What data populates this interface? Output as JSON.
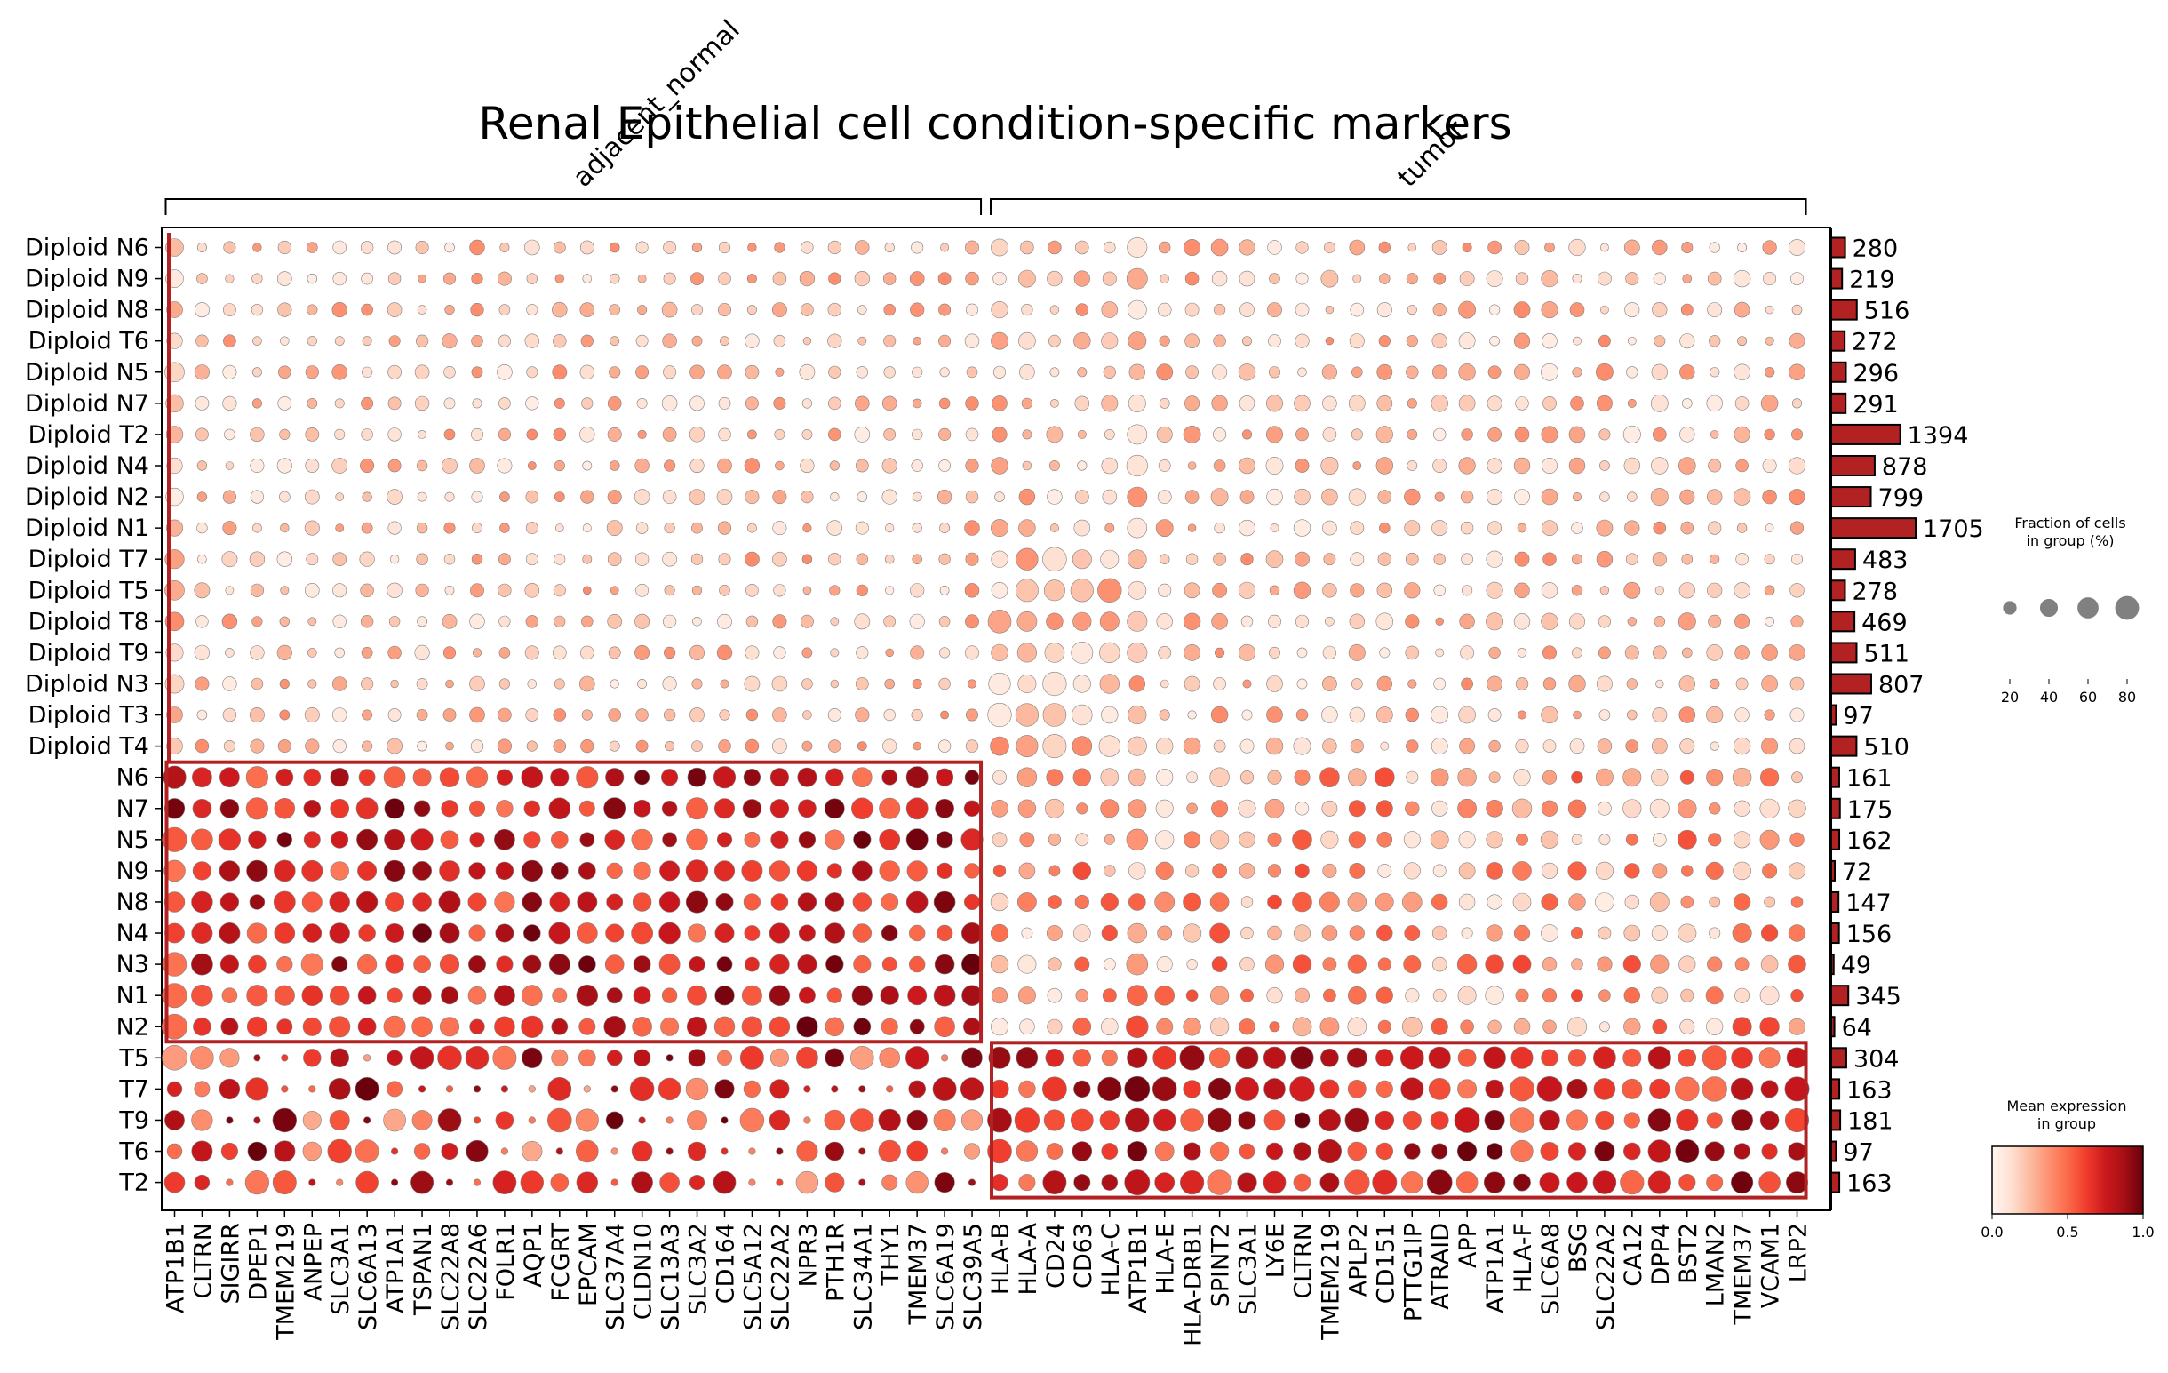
{
  "chart_data": {
    "type": "dotplot",
    "title": "Renal Epithelial cell condition-specific markers",
    "groups": [
      {
        "name": "adjacent_normal",
        "start": 0,
        "end": 29
      },
      {
        "name": "tumor",
        "start": 30,
        "end": 59
      }
    ],
    "genes": [
      "ATP1B1",
      "CLTRN",
      "SIGIRR",
      "DPEP1",
      "TMEM219",
      "ANPEP",
      "SLC3A1",
      "SLC6A13",
      "ATP1A1",
      "TSPAN1",
      "SLC22A8",
      "SLC22A6",
      "FOLR1",
      "AQP1",
      "FCGRT",
      "EPCAM",
      "SLC37A4",
      "CLDN10",
      "SLC13A3",
      "SLC3A2",
      "CD164",
      "SLC5A12",
      "SLC22A2",
      "NPR3",
      "PTH1R",
      "SLC34A1",
      "THY1",
      "TMEM37",
      "SLC6A19",
      "SLC39A5",
      "HLA-B",
      "HLA-A",
      "CD24",
      "CD63",
      "HLA-C",
      "ATP1B1",
      "HLA-E",
      "HLA-DRB1",
      "SPINT2",
      "SLC3A1",
      "LY6E",
      "CLTRN",
      "TMEM219",
      "APLP2",
      "CD151",
      "PTTG1IP",
      "ATRAID",
      "APP",
      "ATP1A1",
      "HLA-F",
      "SLC6A8",
      "BSG",
      "SLC22A2",
      "CA12",
      "DPP4",
      "BST2",
      "LMAN2",
      "TMEM37",
      "VCAM1",
      "LRP2"
    ],
    "rows": [
      "Diploid N6",
      "Diploid N9",
      "Diploid N8",
      "Diploid T6",
      "Diploid N5",
      "Diploid N7",
      "Diploid T2",
      "Diploid N4",
      "Diploid N2",
      "Diploid N1",
      "Diploid T7",
      "Diploid T5",
      "Diploid T8",
      "Diploid T9",
      "Diploid N3",
      "Diploid T3",
      "Diploid T4",
      "N6",
      "N7",
      "N5",
      "N9",
      "N8",
      "N4",
      "N3",
      "N1",
      "N2",
      "T5",
      "T7",
      "T9",
      "T6",
      "T2"
    ],
    "counts": [
      280,
      219,
      516,
      272,
      296,
      291,
      1394,
      878,
      799,
      1705,
      483,
      278,
      469,
      511,
      807,
      97,
      510,
      161,
      175,
      162,
      72,
      147,
      156,
      49,
      345,
      64,
      304,
      163,
      181,
      97,
      163
    ],
    "highlight_boxes": [
      {
        "rows": [
          17,
          25
        ],
        "cols": [
          0,
          29
        ]
      },
      {
        "rows": [
          26,
          30
        ],
        "cols": [
          30,
          59
        ]
      }
    ],
    "size_legend": {
      "title": "Fraction of cells\nin group (%)",
      "values": [
        20,
        40,
        60,
        80
      ]
    },
    "color_legend": {
      "title": "Mean expression\nin group",
      "ticks": [
        "0.0",
        "0.5",
        "1.0"
      ],
      "range": [
        0,
        1
      ]
    },
    "colors": {
      "low": "#fff5f0",
      "mid": "#ef3b2c",
      "high": "#67000d",
      "bar": "#b22222",
      "box": "#b22222"
    }
  }
}
